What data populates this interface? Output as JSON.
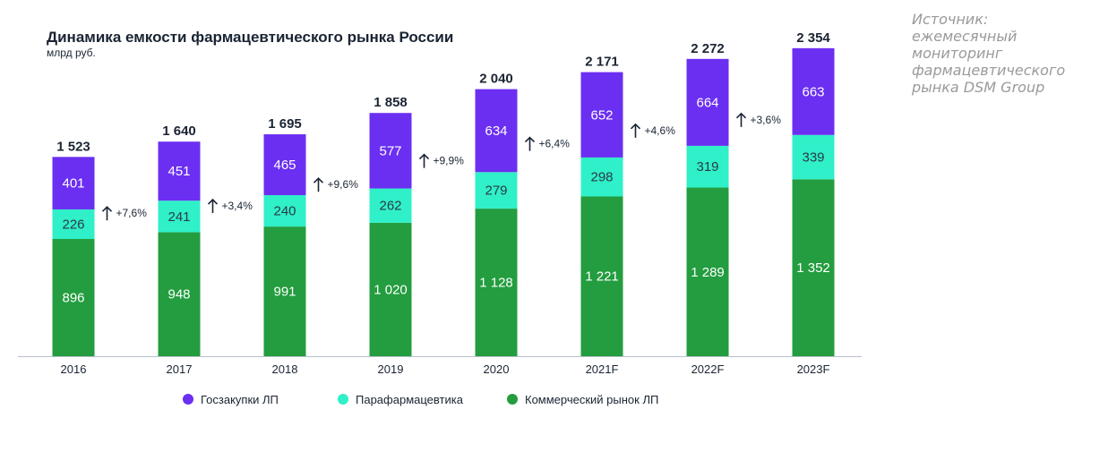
{
  "source_note": "Источник:\nежемесячный\nмониторинг\nфармацевтического\nрынка DSM Group",
  "chart_data": {
    "type": "bar",
    "stacked": true,
    "title": "Динамика емкости фармацевтического рынка России",
    "subtitle": "млрд руб.",
    "categories": [
      "2016",
      "2017",
      "2018",
      "2019",
      "2020",
      "2021F",
      "2022F",
      "2023F"
    ],
    "series": [
      {
        "name": "Коммерческий рынок ЛП",
        "color": "#239d3f",
        "values": [
          896,
          948,
          991,
          1020,
          1128,
          1221,
          1289,
          1352
        ],
        "labels": [
          "896",
          "948",
          "991",
          "1 020",
          "1 128",
          "1 221",
          "1 289",
          "1 352"
        ]
      },
      {
        "name": "Парафармацевтика",
        "color": "#2ff0c8",
        "values": [
          226,
          241,
          240,
          262,
          279,
          298,
          319,
          339
        ],
        "labels": [
          "226",
          "241",
          "240",
          "262",
          "279",
          "298",
          "319",
          "339"
        ]
      },
      {
        "name": "Госзакупки ЛП",
        "color": "#6b2ff2",
        "values": [
          401,
          451,
          465,
          577,
          634,
          652,
          664,
          663
        ],
        "labels": [
          "401",
          "451",
          "465",
          "577",
          "634",
          "652",
          "664",
          "663"
        ]
      }
    ],
    "totals": [
      "1 523",
      "1 640",
      "1 695",
      "1 858",
      "2 040",
      "2 171",
      "2 272",
      "2 354"
    ],
    "growth_labels": [
      "+7,6%",
      "+3,4%",
      "+9,6%",
      "+9,9%",
      "+6,4%",
      "+4,6%",
      "+3,6%"
    ],
    "legend": {
      "position": "bottom",
      "order": [
        "Госзакупки ЛП",
        "Парафармацевтика",
        "Коммерческий рынок ЛП"
      ]
    },
    "grid": false
  }
}
